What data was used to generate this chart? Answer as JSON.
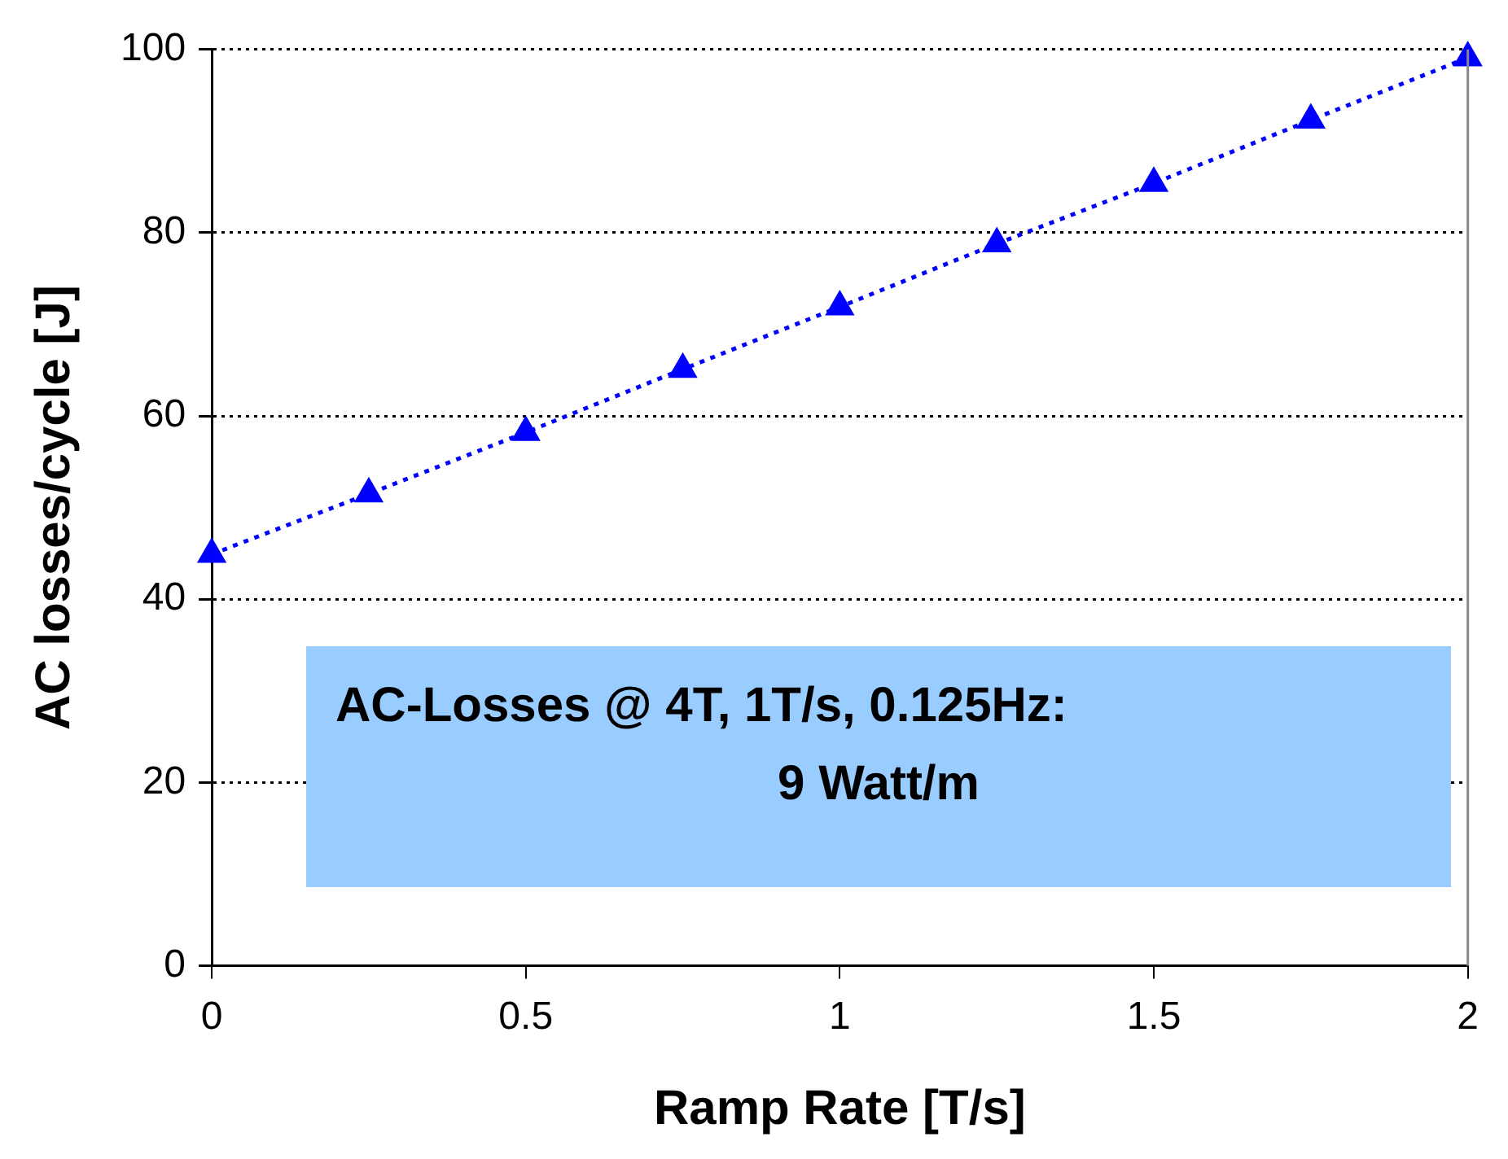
{
  "chart_data": {
    "type": "line",
    "xlabel": "Ramp Rate [T/s]",
    "ylabel": "AC losses/cycle [J]",
    "x": [
      0,
      0.25,
      0.5,
      0.75,
      1,
      1.25,
      1.5,
      1.75,
      2
    ],
    "series": [
      {
        "color": "#0000ff",
        "values": [
          44.9,
          51.5,
          58.2,
          65.1,
          71.9,
          78.8,
          85.4,
          92.3,
          99.1
        ]
      }
    ],
    "xlim": [
      0,
      2
    ],
    "xticks": [
      0,
      0.5,
      1,
      1.5,
      2
    ],
    "ylim": [
      0,
      100
    ],
    "yticks": [
      0,
      20,
      40,
      60,
      80,
      100
    ],
    "grid": "y",
    "legend": false,
    "marker": "triangle",
    "line_style": "dotted",
    "annotations": [
      "AC-Losses @ 4T, 1T/s, 0.125Hz:",
      "9 Watt/m"
    ]
  }
}
